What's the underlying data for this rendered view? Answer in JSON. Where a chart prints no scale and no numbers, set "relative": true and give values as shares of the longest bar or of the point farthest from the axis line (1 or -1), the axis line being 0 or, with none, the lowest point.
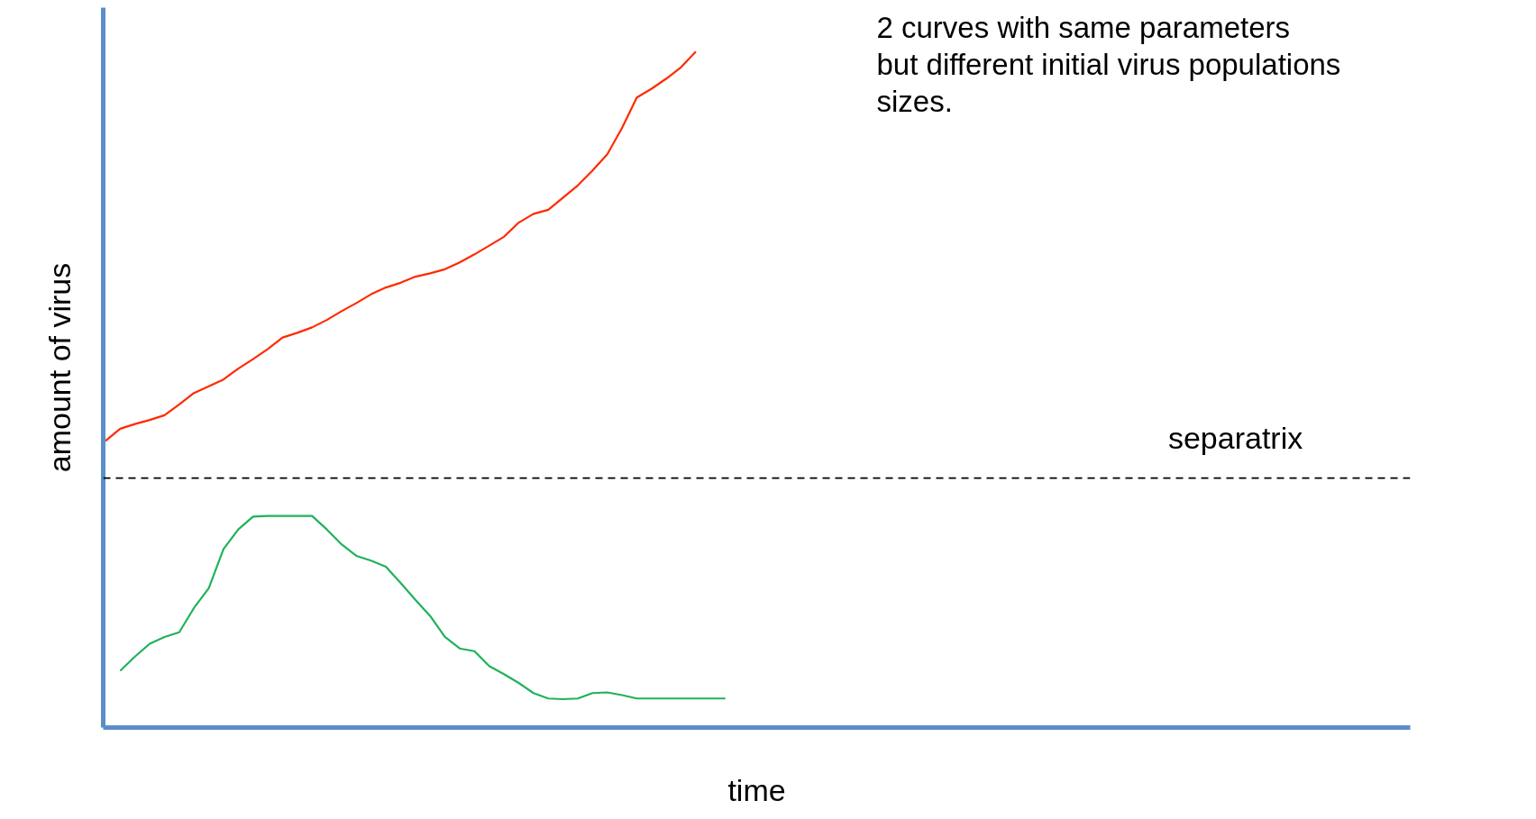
{
  "chart_data": {
    "type": "line",
    "relative": true,
    "tick_labels": false,
    "xlabel": "time",
    "ylabel": "amount of virus",
    "categories": [
      null,
      null,
      null,
      null,
      null,
      null,
      null,
      null,
      null,
      null,
      null,
      null,
      null,
      null,
      null,
      null,
      null,
      null,
      null,
      null,
      null,
      null,
      null,
      null,
      null,
      null,
      null,
      null,
      null,
      null,
      null,
      null,
      null,
      null,
      null,
      null,
      null,
      null,
      null,
      null,
      null,
      null,
      null,
      null,
      null,
      null,
      null,
      null,
      null,
      null,
      null,
      null,
      null,
      null,
      null,
      null,
      null,
      null,
      null,
      null,
      null,
      null,
      null,
      null,
      null,
      null,
      null,
      null,
      null,
      null,
      null,
      null,
      null,
      null,
      null,
      null,
      null,
      null,
      null,
      null,
      null,
      null,
      null,
      null,
      null,
      null,
      null,
      null,
      null
    ],
    "series": [
      {
        "color": "#ff2a00",
        "values": [
          0.424,
          0.442,
          0.449,
          0.455,
          0.462,
          0.478,
          0.495,
          0.505,
          0.515,
          0.531,
          0.545,
          0.56,
          0.577,
          0.584,
          0.592,
          0.603,
          0.616,
          0.628,
          0.641,
          0.651,
          0.658,
          0.667,
          0.672,
          0.678,
          0.688,
          0.7,
          0.713,
          0.726,
          0.747,
          0.76,
          0.766,
          0.784,
          0.802,
          0.824,
          0.848,
          0.887,
          0.932,
          0.945,
          0.96,
          0.977,
          1.0,
          null,
          null,
          null,
          null,
          null,
          null,
          null,
          null,
          null,
          null,
          null,
          null,
          null,
          null,
          null,
          null,
          null,
          null,
          null,
          null,
          null,
          null,
          null,
          null,
          null,
          null,
          null,
          null,
          null,
          null,
          null,
          null,
          null,
          null,
          null,
          null,
          null,
          null,
          null,
          null,
          null,
          null,
          null,
          null,
          null,
          null,
          null,
          null
        ]
      },
      {
        "color": "#1fb25a",
        "values": [
          null,
          0.084,
          0.105,
          0.124,
          0.134,
          0.141,
          0.177,
          0.206,
          0.264,
          0.293,
          0.312,
          0.313,
          0.313,
          0.313,
          0.313,
          0.293,
          0.271,
          0.254,
          0.247,
          0.238,
          0.214,
          0.189,
          0.165,
          0.134,
          0.117,
          0.113,
          0.091,
          0.079,
          0.066,
          0.051,
          0.043,
          0.042,
          0.043,
          0.051,
          0.052,
          0.048,
          0.043,
          0.043,
          0.043,
          0.043,
          0.043,
          0.043,
          0.043,
          null,
          null,
          null,
          null,
          null,
          null,
          null,
          null,
          null,
          null,
          null,
          null,
          null,
          null,
          null,
          null,
          null,
          null,
          null,
          null,
          null,
          null,
          null,
          null,
          null,
          null,
          null,
          null,
          null,
          null,
          null,
          null,
          null,
          null,
          null,
          null,
          null,
          null,
          null,
          null,
          null,
          null,
          null,
          null,
          null,
          null
        ]
      }
    ],
    "ref_lines": [
      {
        "axis": "y",
        "value": 0.369,
        "label": "separatrix",
        "color": "#000000",
        "line_style": "dashed"
      }
    ],
    "annotations": [
      "2 curves with same parameters\nbut different initial virus populations\nsizes."
    ]
  }
}
